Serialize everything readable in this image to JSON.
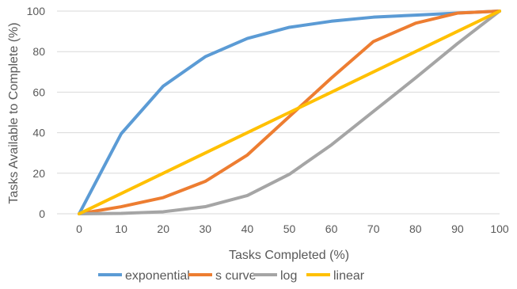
{
  "chart_data": {
    "type": "line",
    "title": "",
    "xlabel": "Tasks Completed (%)",
    "ylabel": "Tasks Available to Complete (%)",
    "x": [
      0,
      10,
      20,
      30,
      40,
      50,
      60,
      70,
      80,
      90,
      100
    ],
    "xlim": [
      0,
      100
    ],
    "ylim": [
      0,
      100
    ],
    "xticks": [
      0,
      10,
      20,
      30,
      40,
      50,
      60,
      70,
      80,
      90,
      100
    ],
    "yticks": [
      0,
      20,
      40,
      60,
      80,
      100
    ],
    "grid": "horizontal",
    "legend_position": "bottom",
    "series": [
      {
        "name": "exponential",
        "color": "#5B9BD5",
        "values": [
          0,
          39.5,
          63,
          77.5,
          86.5,
          92,
          95,
          97,
          98,
          99,
          100
        ]
      },
      {
        "name": "s curve",
        "color": "#ED7D31",
        "values": [
          0,
          3.5,
          8,
          16,
          29,
          48,
          67,
          85,
          94,
          99,
          100
        ]
      },
      {
        "name": "log",
        "color": "#A5A5A5",
        "values": [
          0,
          0.2,
          1,
          3.5,
          9,
          19.5,
          34,
          50.5,
          67,
          84,
          100
        ]
      },
      {
        "name": "linear",
        "color": "#FFC000",
        "values": [
          0,
          10,
          20,
          30,
          40,
          50,
          60,
          70,
          80,
          90,
          100
        ]
      }
    ]
  }
}
